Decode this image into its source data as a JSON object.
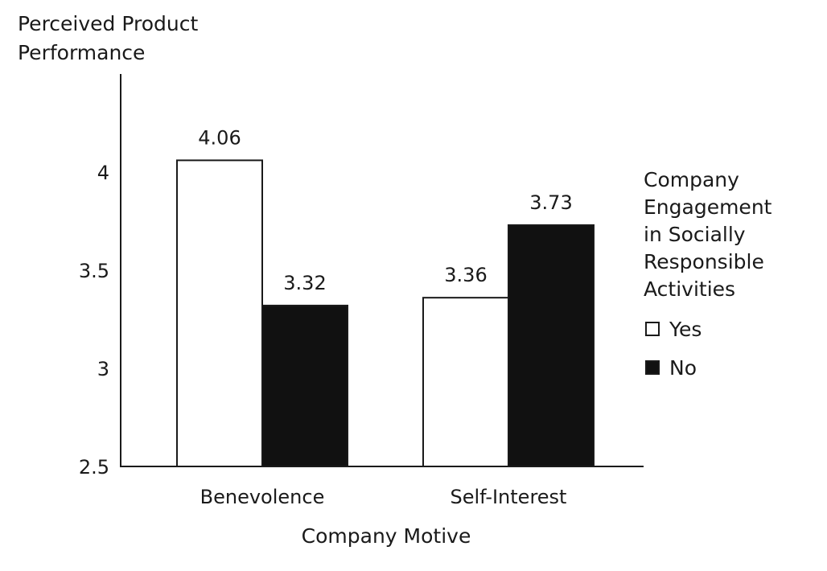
{
  "chart_data": {
    "type": "bar",
    "categories": [
      "Benevolence",
      "Self-Interest"
    ],
    "series": [
      {
        "name": "Yes",
        "values": [
          4.06,
          3.36
        ],
        "color": "#ffffff"
      },
      {
        "name": "No",
        "values": [
          3.32,
          3.73
        ],
        "color": "#111111"
      }
    ],
    "data_labels": [
      [
        "4.06",
        "3.36"
      ],
      [
        "3.32",
        "3.73"
      ]
    ],
    "ylabel_lines": [
      "Perceived Product",
      "Performance"
    ],
    "xlabel": "Company Motive",
    "ylim": [
      2.5,
      4.5
    ],
    "yticks": [
      2.5,
      3,
      3.5,
      4
    ],
    "ytick_labels": [
      "2.5",
      "3",
      "3.5",
      "4"
    ],
    "grid": false,
    "legend": {
      "title_lines": [
        "Company",
        "Engagement",
        "in Socially",
        "Responsible",
        "Activities"
      ],
      "placement": "right"
    }
  }
}
